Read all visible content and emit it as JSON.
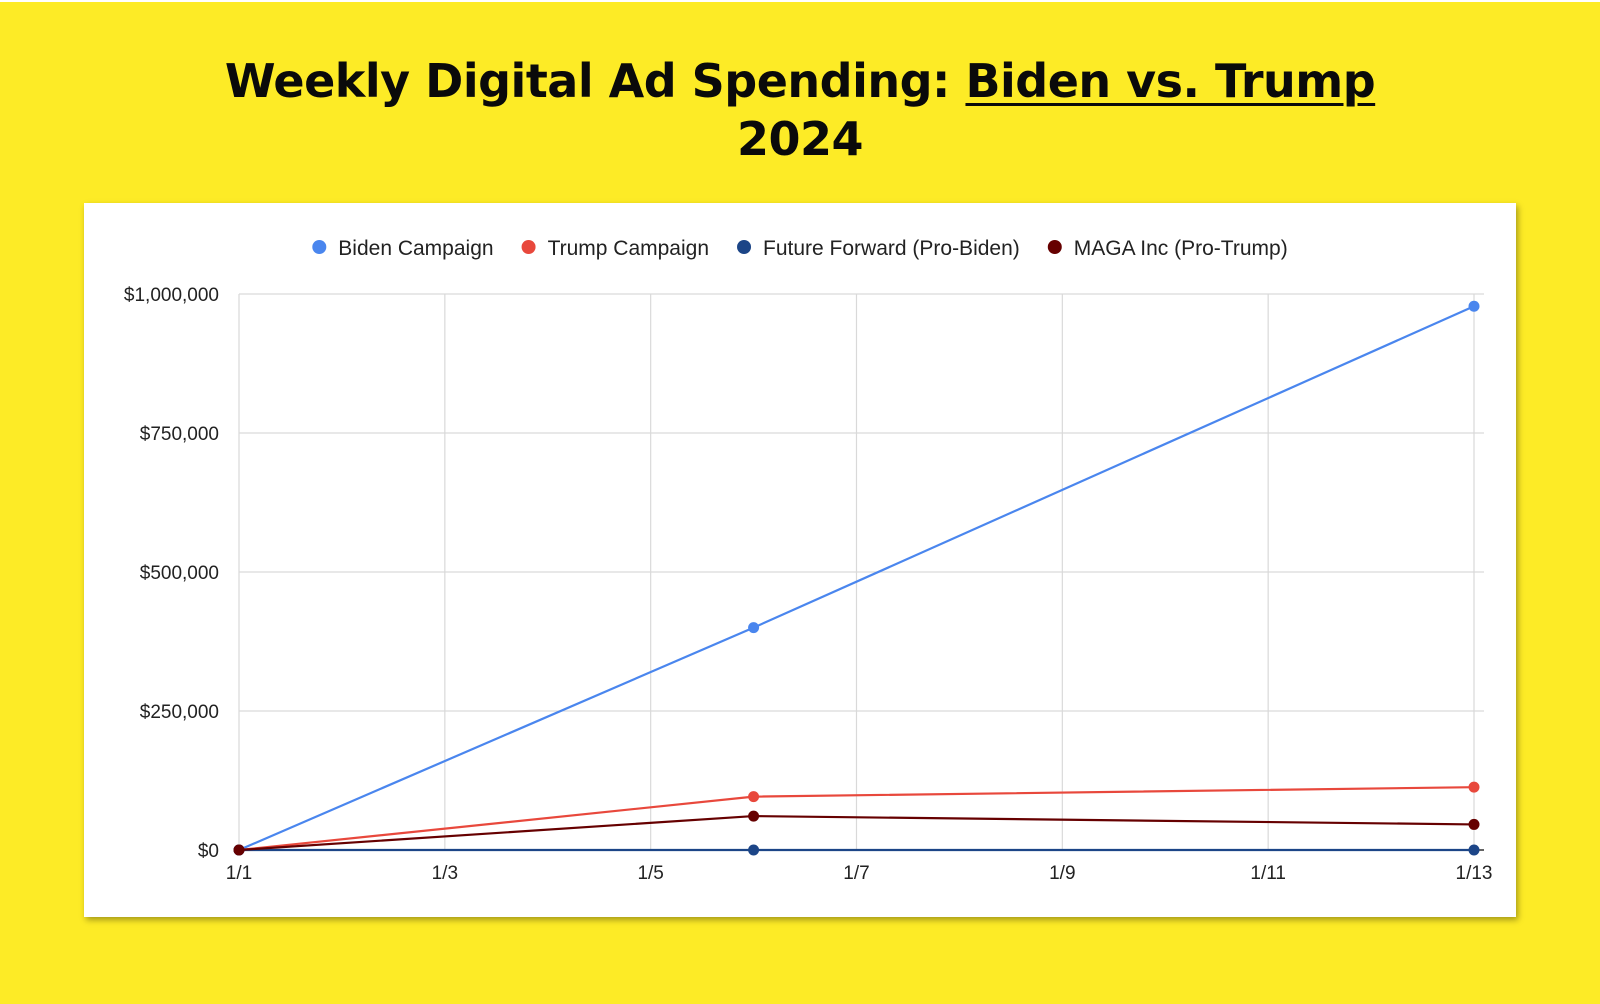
{
  "title": {
    "prefix": "Weekly Digital Ad Spending: ",
    "underlined": "Biden vs. Trump",
    "line2": "2024"
  },
  "chart_data": {
    "type": "line",
    "title": "Weekly Digital Ad Spending: Biden vs. Trump 2024",
    "xlabel": "",
    "ylabel": "",
    "x_ticks": [
      "1/1",
      "1/3",
      "1/5",
      "1/7",
      "1/9",
      "1/11",
      "1/13"
    ],
    "x_tick_days": [
      1,
      3,
      5,
      7,
      9,
      11,
      13
    ],
    "xlim": [
      1,
      13
    ],
    "y_ticks": [
      "$0",
      "$250,000",
      "$500,000",
      "$750,000",
      "$1,000,000"
    ],
    "y_tick_values": [
      0,
      250000,
      500000,
      750000,
      1000000
    ],
    "ylim": [
      0,
      1000000
    ],
    "grid": true,
    "legend_position": "top",
    "series": [
      {
        "name": "Biden Campaign",
        "color": "#4A86EE",
        "points": [
          {
            "x": "1/1",
            "day": 1,
            "y": 0
          },
          {
            "x": "1/6",
            "day": 6,
            "y": 400000
          },
          {
            "x": "1/13",
            "day": 13,
            "y": 978000
          }
        ]
      },
      {
        "name": "Trump Campaign",
        "color": "#E8483C",
        "points": [
          {
            "x": "1/1",
            "day": 1,
            "y": 0
          },
          {
            "x": "1/6",
            "day": 6,
            "y": 96000
          },
          {
            "x": "1/13",
            "day": 13,
            "y": 113000
          }
        ]
      },
      {
        "name": "Future Forward (Pro-Biden)",
        "color": "#1C4587",
        "points": [
          {
            "x": "1/1",
            "day": 1,
            "y": 0
          },
          {
            "x": "1/6",
            "day": 6,
            "y": 0
          },
          {
            "x": "1/13",
            "day": 13,
            "y": 0
          }
        ]
      },
      {
        "name": "MAGA Inc (Pro-Trump)",
        "color": "#660000",
        "points": [
          {
            "x": "1/1",
            "day": 1,
            "y": 0
          },
          {
            "x": "1/6",
            "day": 6,
            "y": 61000
          },
          {
            "x": "1/13",
            "day": 13,
            "y": 46000
          }
        ]
      }
    ]
  }
}
